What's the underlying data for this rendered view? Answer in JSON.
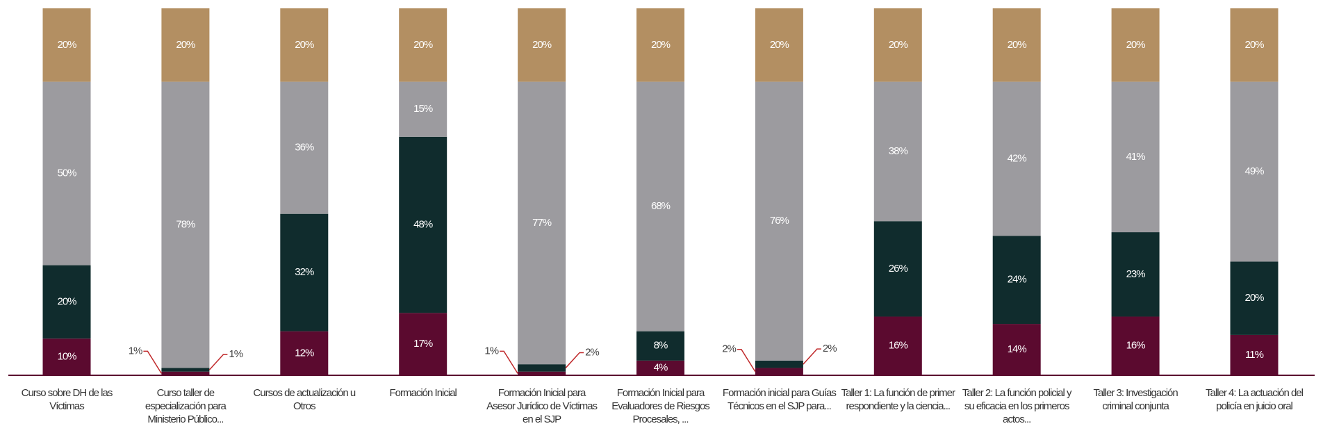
{
  "chart_data": {
    "type": "stacked-bar",
    "categories": [
      "Curso sobre DH de las Víctimas",
      "Curso taller de especialización para Ministerio Público...",
      "Cursos de actualización u Otros",
      "Formación Inicial",
      "Formación Inicial para Asesor Jurídico de Víctimas en el SJP",
      "Formación Inicial para Evaluadores de Riesgos Procesales, ...",
      "Formación inicial para Guías Técnicos en el SJP para...",
      "Taller 1: La función de primer respondiente y la ciencia...",
      "Taller 2: La función policial y su eficacia en los primeros actos...",
      "Taller 3: Investigación criminal conjunta",
      "Taller 4: La actuación del policía en juicio oral"
    ],
    "ylim": [
      0,
      100
    ],
    "series": [
      {
        "color": "#5b0a2f",
        "values": [
          10,
          1,
          12,
          17,
          1,
          4,
          2,
          16,
          14,
          16,
          11
        ],
        "value_labels": [
          "10%",
          "1%",
          "12%",
          "17%",
          "1%",
          "4%",
          "2%",
          "16%",
          "14%",
          "16%",
          "11%"
        ]
      },
      {
        "color": "#102c2d",
        "values": [
          20,
          1,
          32,
          48,
          2,
          8,
          2,
          26,
          24,
          23,
          20
        ],
        "value_labels": [
          "20%",
          "1%",
          "32%",
          "48%",
          "2%",
          "8%",
          "2%",
          "26%",
          "24%",
          "23%",
          "20%"
        ]
      },
      {
        "color": "#9c9b9f",
        "values": [
          50,
          78,
          36,
          15,
          77,
          68,
          76,
          38,
          42,
          41,
          49
        ],
        "value_labels": [
          "50%",
          "78%",
          "36%",
          "15%",
          "77%",
          "68%",
          "76%",
          "38%",
          "42%",
          "41%",
          "49%"
        ]
      },
      {
        "color": "#b38f62",
        "values": [
          20,
          20,
          20,
          20,
          20,
          20,
          20,
          20,
          20,
          20,
          20
        ],
        "value_labels": [
          "20%",
          "20%",
          "20%",
          "20%",
          "20%",
          "20%",
          "20%",
          "20%",
          "20%",
          "20%",
          "20%"
        ]
      }
    ]
  }
}
